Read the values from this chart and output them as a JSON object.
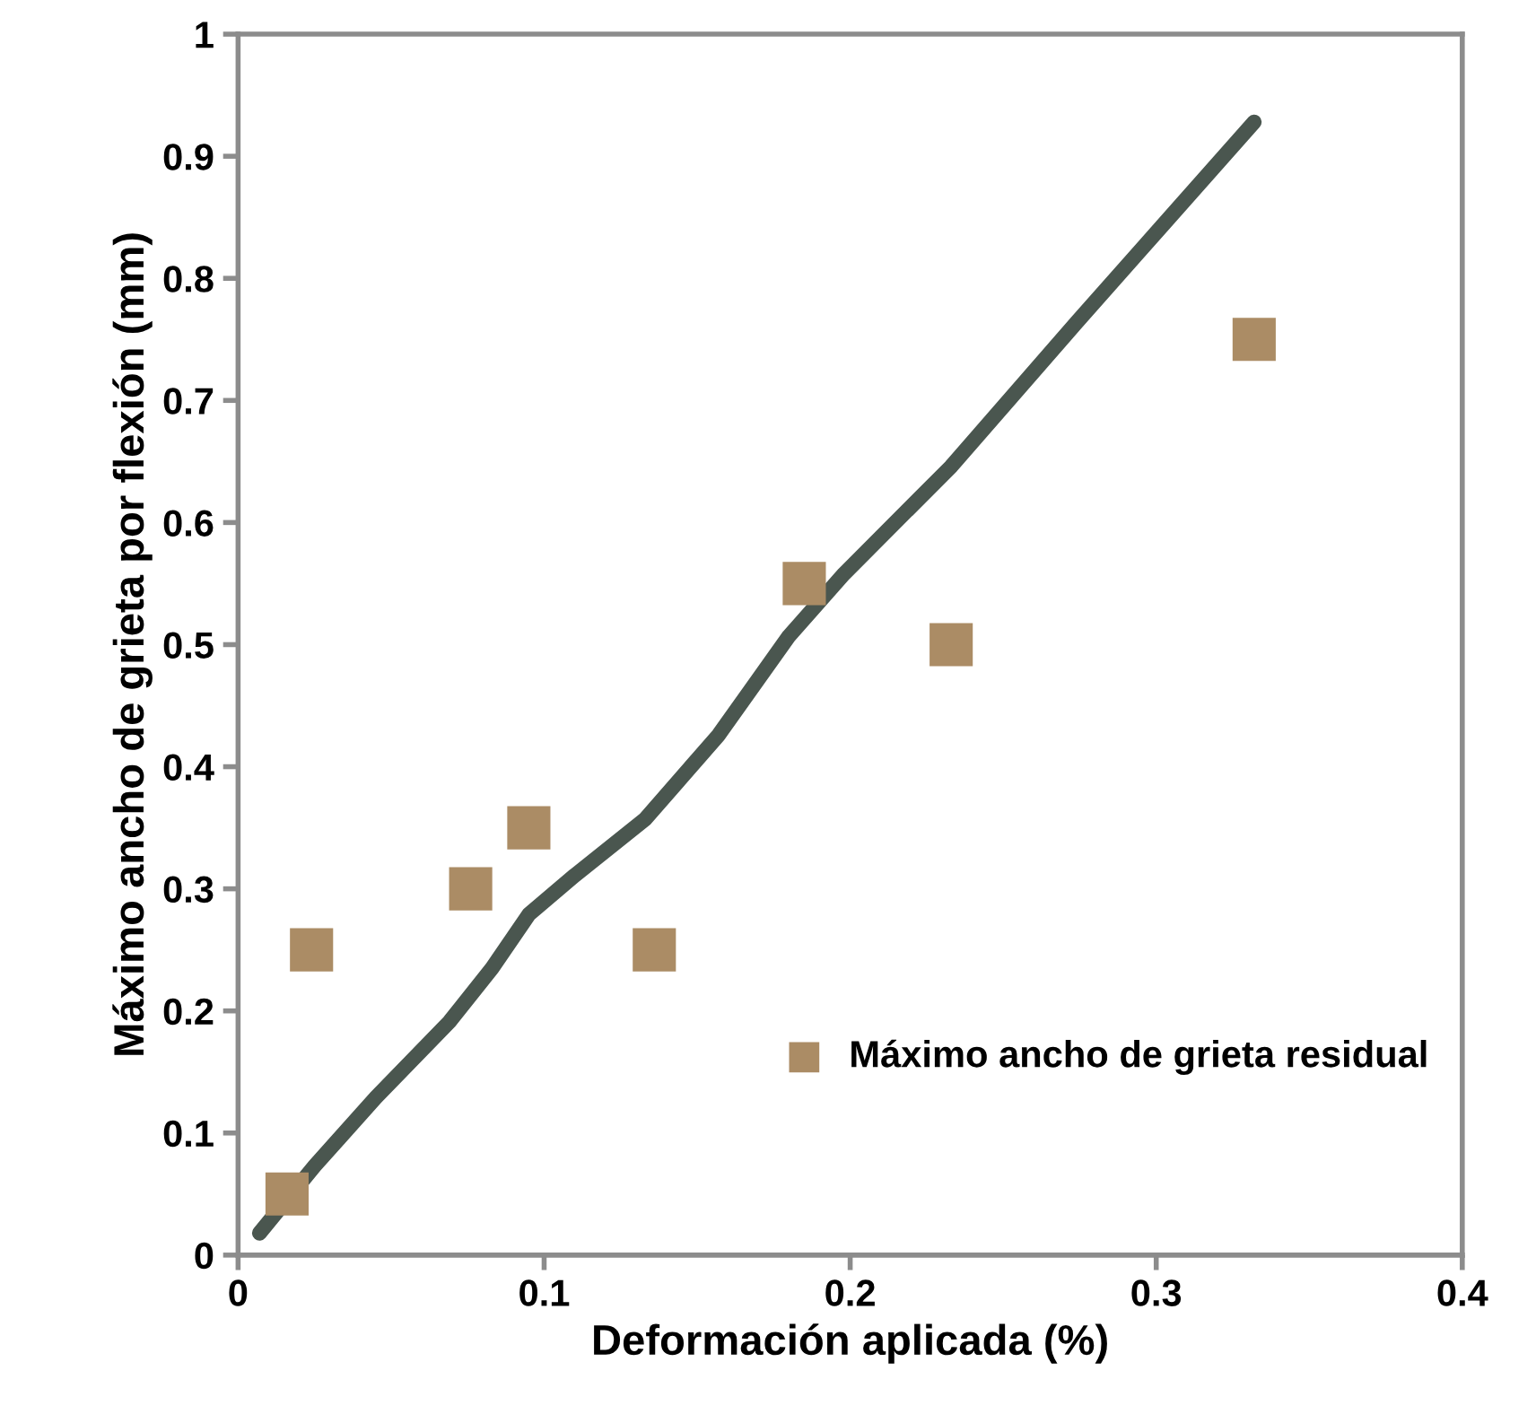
{
  "chart_data": {
    "type": "scatter",
    "xlabel": "Deformación aplicada (%)",
    "ylabel": "Máximo ancho de grieta por flexión (mm)",
    "series": [
      {
        "type": "line",
        "color": "#4a564f",
        "x": [
          0.007,
          0.025,
          0.045,
          0.069,
          0.083,
          0.095,
          0.11,
          0.133,
          0.157,
          0.18,
          0.198,
          0.233,
          0.274,
          0.332
        ],
        "values": [
          0.018,
          0.073,
          0.129,
          0.191,
          0.235,
          0.279,
          0.311,
          0.357,
          0.426,
          0.507,
          0.558,
          0.646,
          0.764,
          0.928
        ],
        "marker": "none",
        "line_style": "solid"
      },
      {
        "name": "Máximo ancho de grieta residual",
        "color": "#ab8c65",
        "x": [
          0.016,
          0.024,
          0.076,
          0.095,
          0.136,
          0.185,
          0.233,
          0.332
        ],
        "values": [
          0.05,
          0.25,
          0.3,
          0.35,
          0.25,
          0.55,
          0.5,
          0.75
        ],
        "marker": "square"
      }
    ],
    "xlim": [
      0,
      0.4
    ],
    "xticks": [
      0,
      0.1,
      0.2,
      0.3,
      0.4
    ],
    "ylim": [
      0,
      1
    ],
    "yticks": [
      0,
      0.1,
      0.2,
      0.3,
      0.4,
      0.5,
      0.6,
      0.7,
      0.8,
      0.9,
      1
    ],
    "grid": false,
    "legend": "lower right"
  }
}
